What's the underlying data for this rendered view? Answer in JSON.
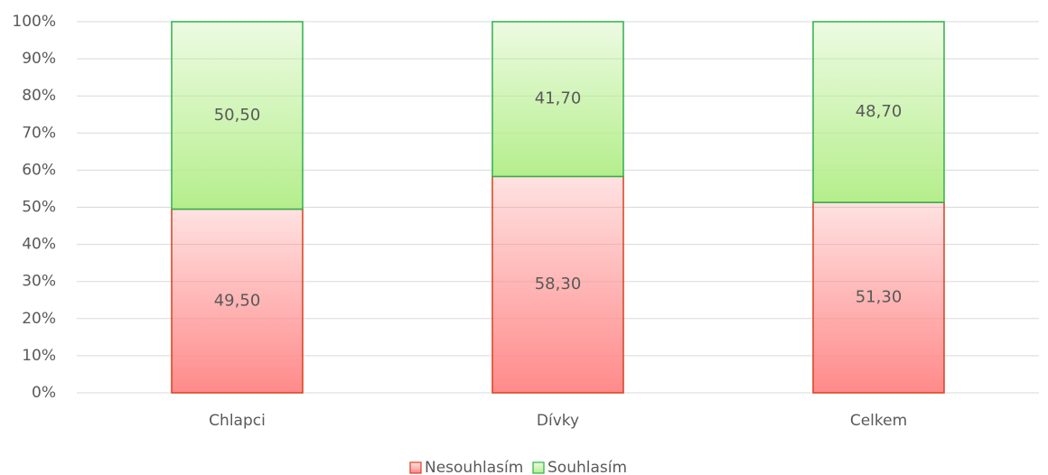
{
  "chart_data": {
    "type": "stacked_bar",
    "categories": [
      "Chlapci",
      "Dívky",
      "Celkem"
    ],
    "series": [
      {
        "name": "Nesouhlasím",
        "color": "#ff8a8a",
        "edgecolor": "#d9401f",
        "values": [
          49.5,
          58.3,
          51.3
        ],
        "value_labels": [
          "49,50",
          "58,30",
          "51,30"
        ]
      },
      {
        "name": "Souhlasím",
        "color": "#b5ee8c",
        "edgecolor": "#2eb04a",
        "values": [
          50.5,
          41.7,
          48.7
        ],
        "value_labels": [
          "50,50",
          "41,70",
          "48,70"
        ]
      }
    ],
    "ylim": [
      0,
      100
    ],
    "yticks": [
      {
        "value": 0,
        "label": "0%"
      },
      {
        "value": 10,
        "label": "10%"
      },
      {
        "value": 20,
        "label": "20%"
      },
      {
        "value": 30,
        "label": "30%"
      },
      {
        "value": 40,
        "label": "40%"
      },
      {
        "value": 50,
        "label": "50%"
      },
      {
        "value": 60,
        "label": "60%"
      },
      {
        "value": 70,
        "label": "70%"
      },
      {
        "value": 80,
        "label": "80%"
      },
      {
        "value": 90,
        "label": "90%"
      },
      {
        "value": 100,
        "label": "100%"
      }
    ],
    "grid": true,
    "legend": "bottom"
  }
}
